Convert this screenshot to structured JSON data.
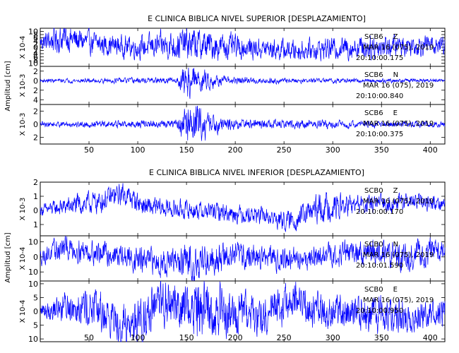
{
  "chart_data": [
    {
      "type": "line",
      "title": "E CLINICA BIBLICA NIVEL SUPERIOR [DESPLAZAMIENTO]",
      "ylabel": "Amplitud [cm]",
      "x_ticks": [
        50,
        100,
        150,
        200,
        250,
        300,
        350,
        400
      ],
      "xlim": [
        0,
        415
      ],
      "color": "#0000ff",
      "traces": [
        {
          "scale_label": "X 10-4",
          "ylim": [
            -12,
            12
          ],
          "y_ticks": [
            -10,
            -8,
            -6,
            -4,
            -2,
            0,
            2,
            4,
            6,
            8,
            10
          ],
          "y_tick_labels": [
            "10",
            "8",
            "6",
            "4",
            "2",
            "0",
            "2",
            "4",
            "6",
            "8",
            "10"
          ],
          "station": "SCB6",
          "component": "Z",
          "date": "MAR 16 (075), 2019",
          "time": "20:10:00.175",
          "envelope": [
            [
              0,
              4
            ],
            [
              20,
              7
            ],
            [
              40,
              6
            ],
            [
              80,
              5
            ],
            [
              120,
              6
            ],
            [
              150,
              8
            ],
            [
              175,
              7
            ],
            [
              220,
              5
            ],
            [
              280,
              5
            ],
            [
              340,
              6
            ],
            [
              380,
              5
            ],
            [
              415,
              5
            ]
          ],
          "drift": [
            [
              0,
              3
            ],
            [
              25,
              6
            ],
            [
              60,
              2
            ],
            [
              100,
              0
            ],
            [
              150,
              2
            ],
            [
              200,
              0
            ],
            [
              260,
              -2
            ],
            [
              320,
              0
            ],
            [
              360,
              1
            ],
            [
              415,
              2
            ]
          ]
        },
        {
          "scale_label": "X 10-3",
          "ylim": [
            -5,
            3
          ],
          "y_ticks": [
            -4,
            -2,
            0,
            2
          ],
          "y_tick_labels": [
            "4",
            "2",
            "0",
            "2"
          ],
          "station": "SCB6",
          "component": "N",
          "date": "MAR 16 (075), 2019",
          "time": "20:10:00.840",
          "envelope": [
            [
              0,
              0.3
            ],
            [
              140,
              0.5
            ],
            [
              150,
              3.0
            ],
            [
              160,
              2.0
            ],
            [
              170,
              1.5
            ],
            [
              190,
              0.6
            ],
            [
              260,
              0.4
            ],
            [
              415,
              0.3
            ]
          ],
          "drift": [
            [
              0,
              0
            ],
            [
              415,
              0
            ]
          ]
        },
        {
          "scale_label": "X 10-3",
          "ylim": [
            -3,
            3
          ],
          "y_ticks": [
            -2,
            0,
            2
          ],
          "y_tick_labels": [
            "2",
            "0",
            "2"
          ],
          "station": "SCB6",
          "component": "E",
          "date": "MAR 16 (075), 2019",
          "time": "20:10:00.375",
          "envelope": [
            [
              0,
              0.3
            ],
            [
              140,
              0.5
            ],
            [
              150,
              2.5
            ],
            [
              160,
              2.2
            ],
            [
              175,
              1.2
            ],
            [
              200,
              0.6
            ],
            [
              270,
              0.5
            ],
            [
              415,
              0.3
            ]
          ],
          "drift": [
            [
              0,
              0
            ],
            [
              415,
              0
            ]
          ]
        }
      ]
    },
    {
      "type": "line",
      "title": "E CLINICA BIBLICA NIVEL INFERIOR [DESPLAZAMIENTO]",
      "ylabel": "Amplitud [cm]",
      "x_ticks": [
        50,
        100,
        150,
        200,
        250,
        300,
        350,
        400
      ],
      "xlim": [
        0,
        415
      ],
      "color": "#0000ff",
      "traces": [
        {
          "scale_label": "X 10-3",
          "ylim": [
            -1.8,
            2.0
          ],
          "y_ticks": [
            -1,
            0,
            1,
            2
          ],
          "y_tick_labels": [
            "1",
            "0",
            "1",
            "2"
          ],
          "station": "SCB0",
          "component": "Z",
          "date": "MAR 16 (075), 2019",
          "time": "20:10:00.170",
          "envelope": [
            [
              0,
              0.3
            ],
            [
              40,
              0.6
            ],
            [
              80,
              0.6
            ],
            [
              150,
              0.5
            ],
            [
              250,
              0.5
            ],
            [
              290,
              0.8
            ],
            [
              330,
              0.5
            ],
            [
              415,
              0.4
            ]
          ],
          "drift": [
            [
              0,
              0
            ],
            [
              30,
              0.3
            ],
            [
              60,
              0.6
            ],
            [
              85,
              1.2
            ],
            [
              110,
              0.2
            ],
            [
              160,
              0.0
            ],
            [
              220,
              -0.3
            ],
            [
              255,
              -0.8
            ],
            [
              290,
              0.2
            ],
            [
              330,
              0.4
            ],
            [
              380,
              0.6
            ],
            [
              415,
              0.5
            ]
          ]
        },
        {
          "scale_label": "X 10-4",
          "ylim": [
            -16,
            14
          ],
          "y_ticks": [
            -10,
            0,
            10
          ],
          "y_tick_labels": [
            "10",
            "0",
            "10"
          ],
          "station": "SCB0",
          "component": "N",
          "date": "MAR 16 (075), 2019",
          "time": "20:10:01.590",
          "envelope": [
            [
              0,
              4
            ],
            [
              20,
              6
            ],
            [
              60,
              6
            ],
            [
              140,
              7
            ],
            [
              155,
              11
            ],
            [
              175,
              8
            ],
            [
              220,
              6
            ],
            [
              300,
              6
            ],
            [
              400,
              7
            ],
            [
              415,
              5
            ]
          ],
          "drift": [
            [
              0,
              0
            ],
            [
              25,
              6
            ],
            [
              60,
              3
            ],
            [
              110,
              -3
            ],
            [
              150,
              -4
            ],
            [
              200,
              1
            ],
            [
              260,
              -2
            ],
            [
              330,
              4
            ],
            [
              370,
              0
            ],
            [
              410,
              5
            ],
            [
              415,
              3
            ]
          ]
        },
        {
          "scale_label": "X 10-4",
          "ylim": [
            -11,
            11
          ],
          "y_ticks": [
            -10,
            -5,
            0,
            5,
            10
          ],
          "y_tick_labels": [
            "10",
            "5",
            "0",
            "5",
            "10"
          ],
          "station": "SCB0",
          "component": "E",
          "date": "MAR 16 (075), 2019",
          "time": "20:10:00.950",
          "envelope": [
            [
              0,
              2
            ],
            [
              30,
              5
            ],
            [
              90,
              6
            ],
            [
              150,
              7
            ],
            [
              160,
              9
            ],
            [
              200,
              6
            ],
            [
              250,
              6
            ],
            [
              290,
              5
            ],
            [
              350,
              5
            ],
            [
              415,
              4
            ]
          ],
          "drift": [
            [
              0,
              0
            ],
            [
              40,
              3
            ],
            [
              90,
              -5
            ],
            [
              130,
              3
            ],
            [
              180,
              0
            ],
            [
              220,
              -2
            ],
            [
              260,
              3
            ],
            [
              300,
              0
            ],
            [
              360,
              -2
            ],
            [
              415,
              0
            ]
          ]
        }
      ]
    }
  ]
}
